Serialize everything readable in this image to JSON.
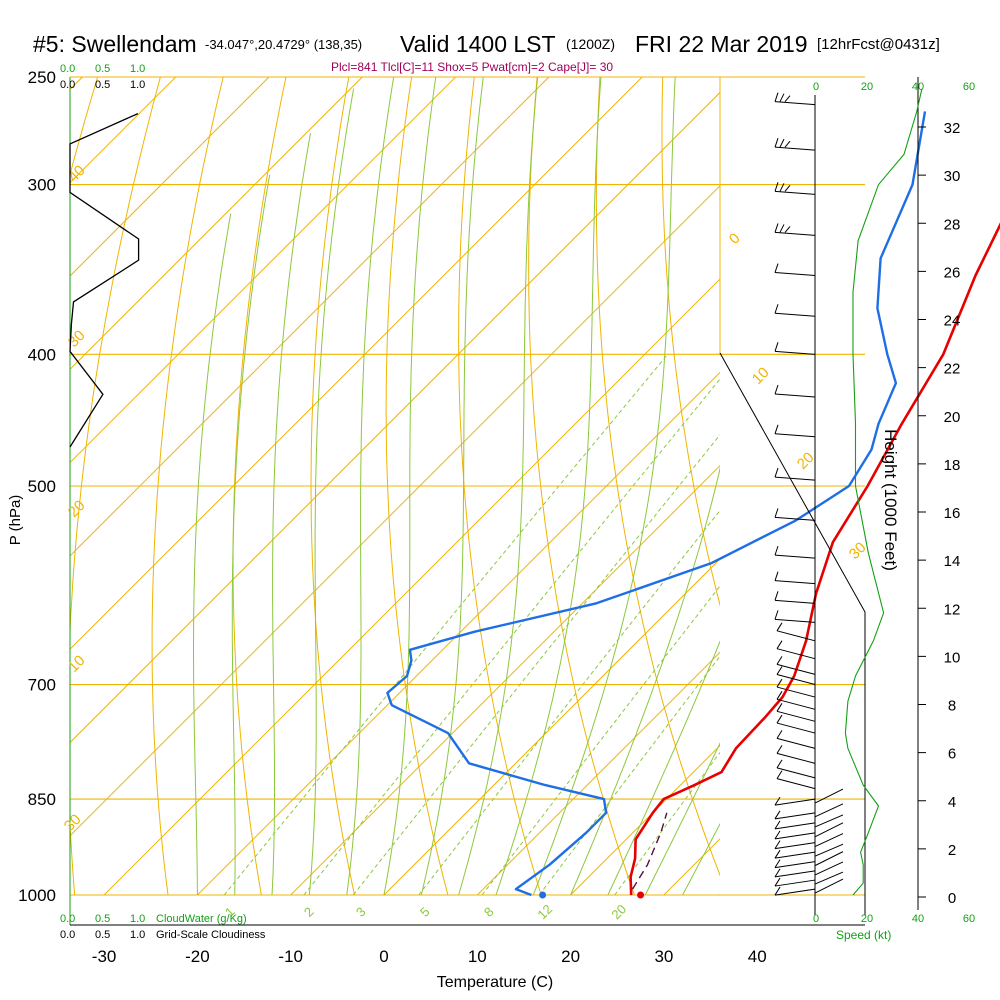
{
  "header": {
    "station": "#5: Swellendam",
    "coords": "-34.047°,20.4729° (138,35)",
    "valid": "Valid 1400 LST",
    "zulu": "(1200Z)",
    "date": "FRI 22 Mar 2019",
    "forecast": "[12hrFcst@0431z]",
    "indices": "Plcl=841 Tlcl[C]=11 Shox=5 Pwat[cm]=2 Cape[J]= 30"
  },
  "colors": {
    "isotherm": "#f0b400",
    "dry_adiabat": "#f0b400",
    "moist_adiabat": "#8cc83c",
    "mixing_ratio": "#8cc83c",
    "temperature": "#e60000",
    "dewpoint": "#1e6ee6",
    "parcel": "#5a0a46",
    "green_label": "#14a014",
    "indices_text": "#a0005a"
  },
  "cloud_scale": {
    "cloudwater_ticks": [
      "0.0",
      "0.5",
      "1.0"
    ],
    "cloudwater_label": "CloudWater (g/Kg)",
    "cloudiness_ticks": [
      "0.0",
      "0.5",
      "1.0"
    ],
    "cloudiness_label": "Grid-Scale Cloudiness"
  },
  "wind_scale": {
    "ticks": [
      "0",
      "20",
      "40",
      "60"
    ],
    "label": "Speed (kt)"
  },
  "chart_data": {
    "type": "line",
    "title": "#5: Swellendam -34.047°,20.4729° (138,35) Valid 1400 LST (1200Z) FRI 22 Mar 2019 [12hrFcst@0431z]",
    "xlabel": "Temperature (C)",
    "ylabel": "P (hPa)",
    "y2label": "Height (1000 Feet)",
    "y_scale": "log",
    "y_reversed": true,
    "xlim": [
      -35,
      36
    ],
    "ylim": [
      1000,
      250
    ],
    "x_ticks": [
      "-30",
      "-20",
      "-10",
      "0",
      "10",
      "20",
      "30",
      "40"
    ],
    "y_ticks": [
      "250",
      "300",
      "400",
      "500",
      "700",
      "850",
      "1000"
    ],
    "height_ticks": [
      "0",
      "2",
      "4",
      "6",
      "8",
      "10",
      "12",
      "14",
      "16",
      "18",
      "20",
      "22",
      "24",
      "26",
      "28",
      "30",
      "32"
    ],
    "isotherm_labels": [
      "-40",
      "-30",
      "-20",
      "-10",
      "0",
      "10",
      "20",
      "30"
    ],
    "mixing_ratio_labels": [
      "1",
      "2",
      "3",
      "5",
      "8",
      "12",
      "20"
    ],
    "grid": true,
    "series": [
      {
        "role": "temperature",
        "points": [
          [
            26.5,
            1000
          ],
          [
            24.5,
            970
          ],
          [
            23,
            940
          ],
          [
            21,
            910
          ],
          [
            20,
            870
          ],
          [
            19.7,
            850
          ],
          [
            21.5,
            830
          ],
          [
            23,
            812
          ],
          [
            22,
            780
          ],
          [
            21.8,
            740
          ],
          [
            21.5,
            715
          ],
          [
            20.5,
            690
          ],
          [
            18,
            650
          ],
          [
            14,
            600
          ],
          [
            10.3,
            550
          ],
          [
            8,
            500
          ],
          [
            5,
            450
          ],
          [
            2,
            400
          ],
          [
            -3,
            350
          ],
          [
            -8,
            300
          ],
          [
            -14.8,
            265
          ]
        ]
      },
      {
        "role": "dewpoint",
        "points": [
          [
            15.8,
            1000
          ],
          [
            13.5,
            990
          ],
          [
            14.5,
            950
          ],
          [
            15,
            900
          ],
          [
            15,
            870
          ],
          [
            13.3,
            850
          ],
          [
            5.5,
            830
          ],
          [
            -5,
            800
          ],
          [
            -10.5,
            760
          ],
          [
            -19.5,
            725
          ],
          [
            -21.3,
            710
          ],
          [
            -21,
            690
          ],
          [
            -22.2,
            672
          ],
          [
            -23.5,
            660
          ],
          [
            -18.5,
            640
          ],
          [
            -8.5,
            610
          ],
          [
            -0.5,
            570
          ],
          [
            4,
            530
          ],
          [
            6,
            500
          ],
          [
            4.5,
            470
          ],
          [
            2.5,
            450
          ],
          [
            0,
            420
          ],
          [
            -4,
            400
          ],
          [
            -10,
            370
          ],
          [
            -15,
            340
          ],
          [
            -19.5,
            300
          ],
          [
            -26,
            265
          ]
        ]
      },
      {
        "role": "parcel",
        "points": [
          [
            26,
            990
          ],
          [
            25,
            950
          ],
          [
            23,
            900
          ],
          [
            21.5,
            870
          ]
        ]
      }
    ],
    "surface_points": {
      "temperature": 27.5,
      "dewpoint": 17
    },
    "cloud_water_profile": [
      [
        0,
        1000
      ],
      [
        0,
        250
      ]
    ],
    "cloudiness_profile": [
      [
        0,
        468
      ],
      [
        0.47,
        428
      ],
      [
        0,
        398
      ],
      [
        0.02,
        380
      ],
      [
        0.05,
        366
      ],
      [
        0.98,
        341
      ],
      [
        0.98,
        329
      ],
      [
        0,
        304
      ],
      [
        0,
        290
      ],
      [
        0,
        280
      ],
      [
        0.97,
        266
      ]
    ],
    "wind_speed_profile": [
      [
        0,
        1000
      ],
      [
        4,
        980
      ],
      [
        4,
        950
      ],
      [
        3,
        930
      ],
      [
        6,
        900
      ],
      [
        10,
        860
      ],
      [
        4,
        830
      ],
      [
        -2,
        780
      ],
      [
        -3,
        760
      ],
      [
        -2,
        720
      ],
      [
        1,
        690
      ],
      [
        8,
        650
      ],
      [
        12,
        620
      ],
      [
        6,
        560
      ],
      [
        1,
        500
      ],
      [
        1,
        450
      ],
      [
        0,
        400
      ],
      [
        0,
        360
      ],
      [
        2,
        330
      ],
      [
        10,
        300
      ],
      [
        20,
        285
      ],
      [
        25,
        265
      ],
      [
        27,
        255
      ]
    ],
    "wind_barbs_hpa": [
      262,
      283,
      305,
      327,
      350,
      375,
      400,
      430,
      460,
      495,
      530,
      565,
      590,
      610,
      630,
      650,
      670,
      688,
      700,
      715,
      730,
      745,
      760,
      780,
      800,
      820,
      835,
      850,
      870,
      885,
      900,
      915,
      930,
      945,
      960,
      975,
      990
    ]
  }
}
